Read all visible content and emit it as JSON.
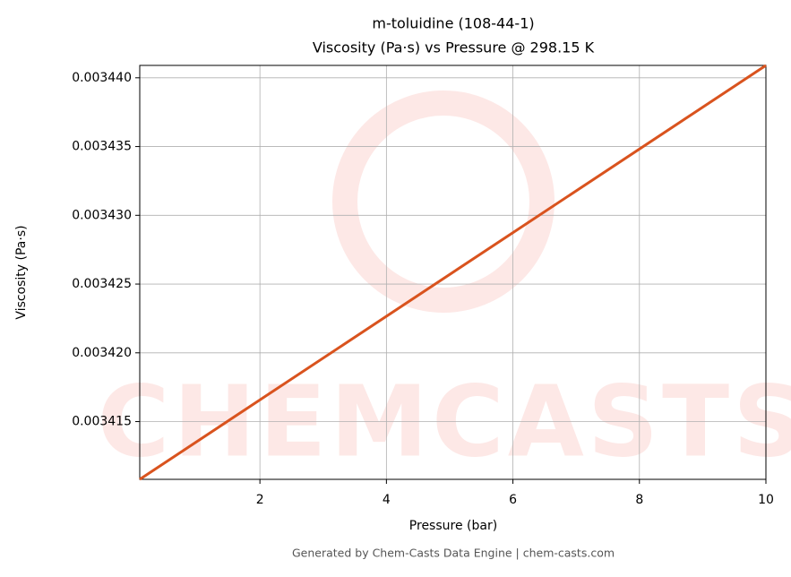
{
  "chart_data": {
    "type": "line",
    "title": "m-toluidine (108-44-1)",
    "subtitle": "Viscosity (Pa·s) vs Pressure @ 298.15 K",
    "x_label": "Pressure (bar)",
    "y_label": "Viscosity (Pa·s)",
    "footer": "Generated by Chem-Casts Data Engine | chem-casts.com",
    "watermark": "CHEMCASTS",
    "x": [
      0.1,
      10
    ],
    "series": [
      {
        "name": "m-toluidine",
        "color": "#d9531e",
        "values": [
          0.0034108,
          0.0034409
        ]
      }
    ],
    "xlim": [
      0.1,
      10
    ],
    "xticks": [
      2,
      4,
      6,
      8,
      10
    ],
    "ylim": [
      0.0034108,
      0.0034409
    ],
    "yticks": [
      {
        "value": 0.003415,
        "label": "0.003415"
      },
      {
        "value": 0.00342,
        "label": "0.003420"
      },
      {
        "value": 0.003425,
        "label": "0.003425"
      },
      {
        "value": 0.00343,
        "label": "0.003430"
      },
      {
        "value": 0.003435,
        "label": "0.003435"
      },
      {
        "value": 0.00344,
        "label": "0.003440"
      }
    ],
    "grid": true
  }
}
